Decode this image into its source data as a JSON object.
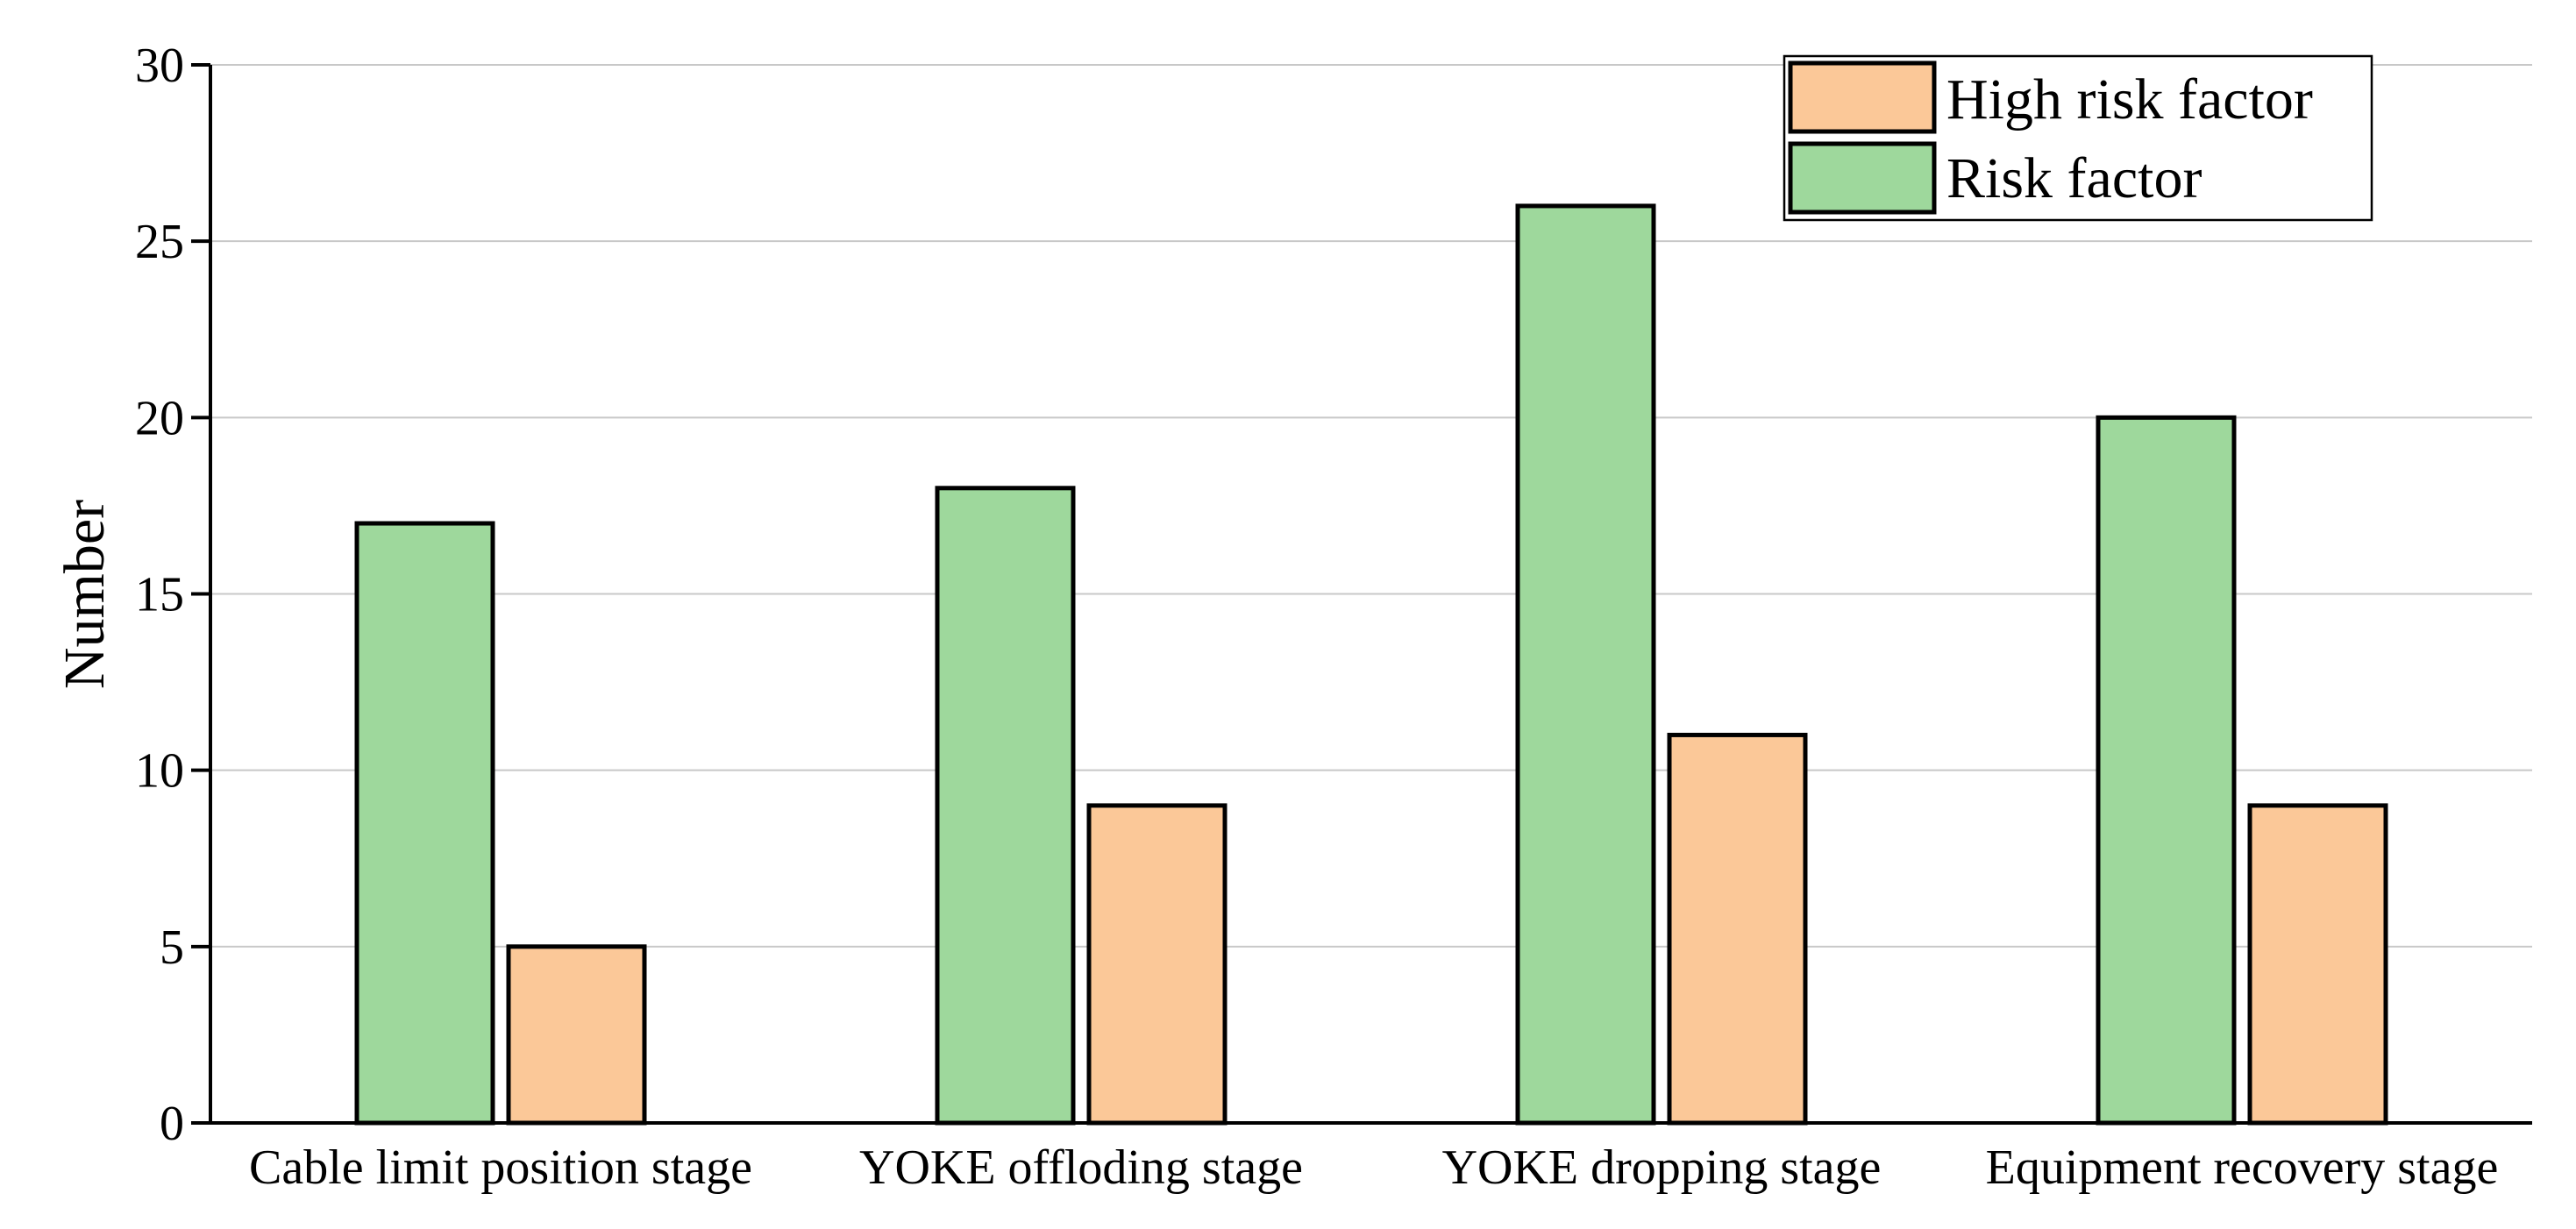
{
  "chart_data": {
    "type": "bar",
    "title": "",
    "xlabel": "",
    "ylabel": "Number",
    "ylim": [
      0,
      30
    ],
    "yticks": [
      0,
      5,
      10,
      15,
      20,
      25,
      30
    ],
    "grid": true,
    "legend_position": "top-right",
    "categories": [
      "Cable limit position stage",
      "YOKE offloding stage",
      "YOKE dropping stage",
      "Equipment recovery stage"
    ],
    "series": [
      {
        "name": "Risk factor",
        "values": [
          17,
          18,
          26,
          20
        ],
        "color": "#9ed89c"
      },
      {
        "name": "High risk factor",
        "values": [
          5,
          9,
          11,
          9
        ],
        "color": "#fbc898"
      }
    ],
    "legend_order": [
      "High risk factor",
      "Risk factor"
    ]
  }
}
